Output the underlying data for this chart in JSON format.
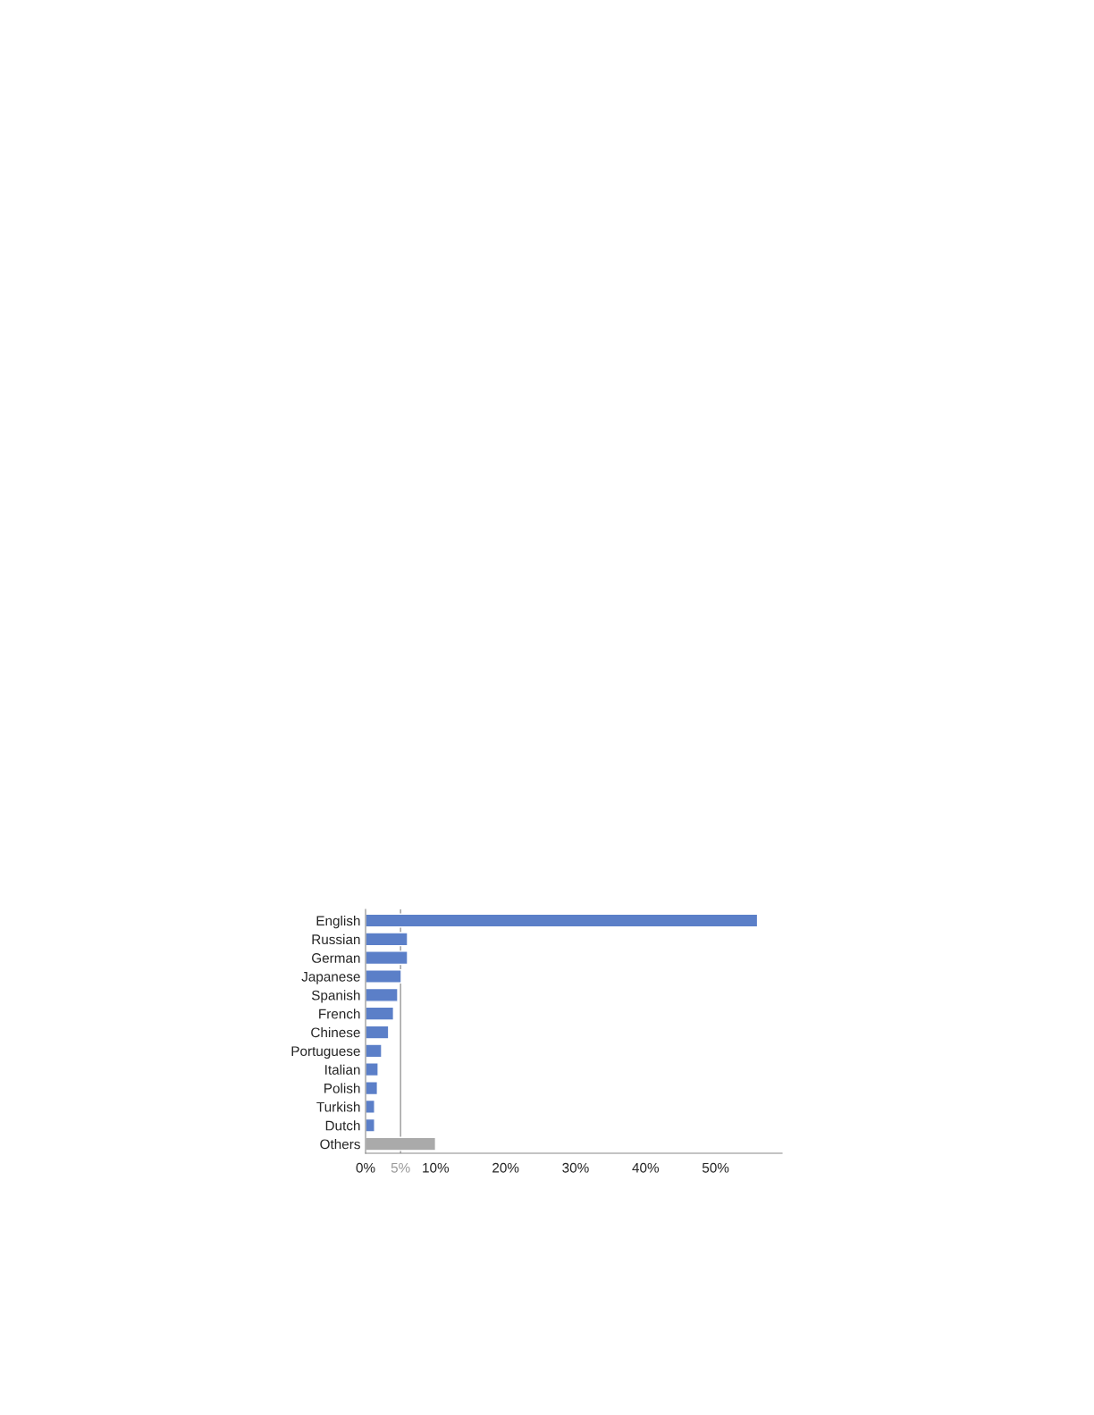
{
  "chart_data": {
    "type": "bar",
    "orientation": "horizontal",
    "categories": [
      "English",
      "Russian",
      "German",
      "Japanese",
      "Spanish",
      "French",
      "Chinese",
      "Portuguese",
      "Italian",
      "Polish",
      "Turkish",
      "Dutch",
      "Others"
    ],
    "values": [
      56.0,
      6.0,
      6.0,
      5.1,
      4.6,
      4.0,
      3.3,
      2.3,
      1.8,
      1.7,
      1.3,
      1.3,
      10.0
    ],
    "colors": [
      "#5b7fc8",
      "#5b7fc8",
      "#5b7fc8",
      "#5b7fc8",
      "#5b7fc8",
      "#5b7fc8",
      "#5b7fc8",
      "#5b7fc8",
      "#5b7fc8",
      "#5b7fc8",
      "#5b7fc8",
      "#5b7fc8",
      "#aaaaaa"
    ],
    "xlim": [
      0,
      59.5
    ],
    "xticks": [
      {
        "value": 0,
        "label": "0%"
      },
      {
        "value": 5,
        "label": "5%"
      },
      {
        "value": 10,
        "label": "10%"
      },
      {
        "value": 20,
        "label": "20%"
      },
      {
        "value": 30,
        "label": "30%"
      },
      {
        "value": 40,
        "label": "40%"
      },
      {
        "value": 50,
        "label": "50%"
      }
    ],
    "ref_lines": [
      {
        "axis": "x",
        "value": 5,
        "color": "#999999"
      }
    ],
    "grid": false,
    "legend": false
  }
}
